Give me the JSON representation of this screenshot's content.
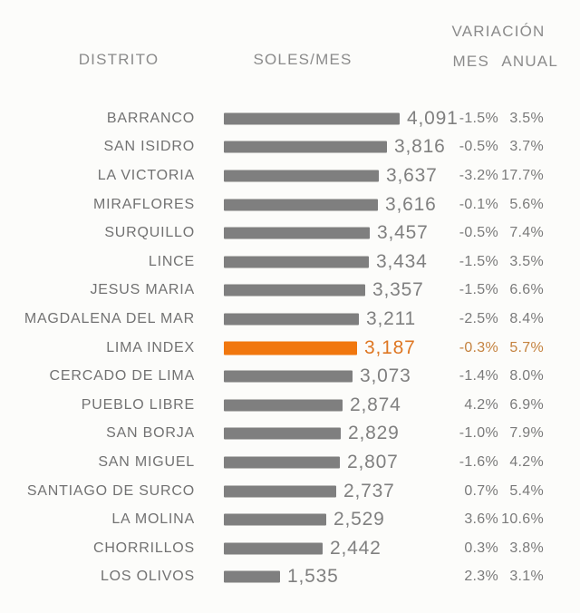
{
  "header": {
    "col_distrito": "DISTRITO",
    "col_soles": "SOLES/MES",
    "col_variacion": "VARIACIÓN",
    "col_mes": "MES",
    "col_anual": "ANUAL"
  },
  "colors": {
    "background": "#FCFCFA",
    "bar_gray": "#7f7f7f",
    "bar_highlight_orange": "#F1770E",
    "label_gray": "#727272",
    "value_gray": "#808080",
    "pct_gray": "#7a7a7a",
    "header_gray": "#8b8b8b",
    "highlight_value_orange": "#DE7723",
    "highlight_pct_orange": "#C4823F"
  },
  "chart_data": {
    "type": "bar",
    "orientation": "horizontal",
    "title": "",
    "columns": [
      "DISTRITO",
      "SOLES/MES",
      "VARIACIÓN MES",
      "VARIACIÓN ANUAL"
    ],
    "value_axis_unit": "soles/mes",
    "highlight_row": "LIMA INDEX",
    "rows": [
      {
        "district": "BARRANCO",
        "soles": 4091,
        "soles_label": "4,091",
        "var_mes": "-1.5%",
        "var_anual": "3.5%",
        "highlight": false
      },
      {
        "district": "SAN ISIDRO",
        "soles": 3816,
        "soles_label": "3,816",
        "var_mes": "-0.5%",
        "var_anual": "3.7%",
        "highlight": false
      },
      {
        "district": "LA VICTORIA",
        "soles": 3637,
        "soles_label": "3,637",
        "var_mes": "-3.2%",
        "var_anual": "17.7%",
        "highlight": false
      },
      {
        "district": "MIRAFLORES",
        "soles": 3616,
        "soles_label": "3,616",
        "var_mes": "-0.1%",
        "var_anual": "5.6%",
        "highlight": false
      },
      {
        "district": "SURQUILLO",
        "soles": 3457,
        "soles_label": "3,457",
        "var_mes": "-0.5%",
        "var_anual": "7.4%",
        "highlight": false
      },
      {
        "district": "LINCE",
        "soles": 3434,
        "soles_label": "3,434",
        "var_mes": "-1.5%",
        "var_anual": "3.5%",
        "highlight": false
      },
      {
        "district": "JESUS MARIA",
        "soles": 3357,
        "soles_label": "3,357",
        "var_mes": "-1.5%",
        "var_anual": "6.6%",
        "highlight": false
      },
      {
        "district": "MAGDALENA DEL MAR",
        "soles": 3211,
        "soles_label": "3,211",
        "var_mes": "-2.5%",
        "var_anual": "8.4%",
        "highlight": false
      },
      {
        "district": "LIMA INDEX",
        "soles": 3187,
        "soles_label": "3,187",
        "var_mes": "-0.3%",
        "var_anual": "5.7%",
        "highlight": true
      },
      {
        "district": "CERCADO DE LIMA",
        "soles": 3073,
        "soles_label": "3,073",
        "var_mes": "-1.4%",
        "var_anual": "8.0%",
        "highlight": false
      },
      {
        "district": "PUEBLO LIBRE",
        "soles": 2874,
        "soles_label": "2,874",
        "var_mes": "4.2%",
        "var_anual": "6.9%",
        "highlight": false
      },
      {
        "district": "SAN BORJA",
        "soles": 2829,
        "soles_label": "2,829",
        "var_mes": "-1.0%",
        "var_anual": "7.9%",
        "highlight": false
      },
      {
        "district": "SAN MIGUEL",
        "soles": 2807,
        "soles_label": "2,807",
        "var_mes": "-1.6%",
        "var_anual": "4.2%",
        "highlight": false
      },
      {
        "district": "SANTIAGO DE SURCO",
        "soles": 2737,
        "soles_label": "2,737",
        "var_mes": "0.7%",
        "var_anual": "5.4%",
        "highlight": false
      },
      {
        "district": "LA MOLINA",
        "soles": 2529,
        "soles_label": "2,529",
        "var_mes": "3.6%",
        "var_anual": "10.6%",
        "highlight": false
      },
      {
        "district": "CHORRILLOS",
        "soles": 2442,
        "soles_label": "2,442",
        "var_mes": "0.3%",
        "var_anual": "3.8%",
        "highlight": false
      },
      {
        "district": "LOS OLIVOS",
        "soles": 1535,
        "soles_label": "1,535",
        "var_mes": "2.3%",
        "var_anual": "3.1%",
        "highlight": false
      }
    ]
  }
}
